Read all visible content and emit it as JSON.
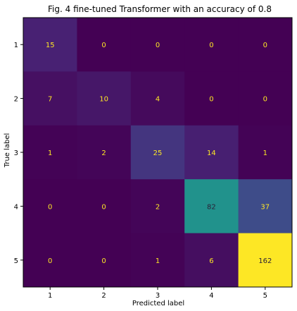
{
  "chart_data": {
    "type": "heatmap",
    "title": "Fig. 4 fine-tuned Transformer with an accuracy of 0.8",
    "xlabel": "Predicted label",
    "ylabel": "True label",
    "x_categories": [
      "1",
      "2",
      "3",
      "4",
      "5"
    ],
    "y_categories": [
      "1",
      "2",
      "3",
      "4",
      "5"
    ],
    "values": [
      [
        15,
        0,
        0,
        0,
        0
      ],
      [
        7,
        10,
        4,
        0,
        0
      ],
      [
        1,
        2,
        25,
        14,
        1
      ],
      [
        0,
        0,
        2,
        82,
        37
      ],
      [
        0,
        0,
        1,
        6,
        162
      ]
    ],
    "colormap": "viridis",
    "vmin": 0,
    "vmax": 162,
    "grid": false,
    "colors": {
      "low_text": "#fde725",
      "high_text": "#2a1f36"
    }
  }
}
